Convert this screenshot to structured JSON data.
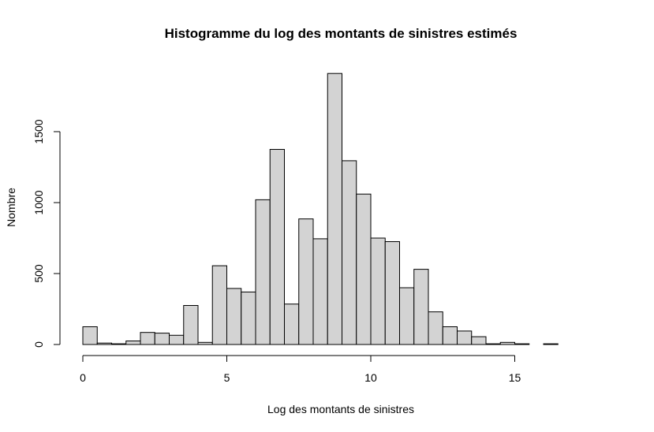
{
  "chart_data": {
    "type": "bar",
    "title": "Histogramme du log des montants de sinistres estimés",
    "xlabel": "Log des montants de sinistres",
    "ylabel": "Nombre",
    "bin_width": 0.5,
    "bin_start": 0,
    "values": [
      125,
      10,
      5,
      25,
      85,
      80,
      65,
      275,
      15,
      555,
      395,
      370,
      1020,
      1375,
      285,
      885,
      745,
      1910,
      1295,
      1060,
      750,
      725,
      400,
      530,
      230,
      125,
      95,
      55,
      5,
      15,
      5,
      0,
      5,
      0,
      0,
      0
    ],
    "xlim": [
      0,
      18
    ],
    "ylim": [
      0,
      1910
    ],
    "x_ticks": [
      0,
      5,
      10,
      15
    ],
    "y_ticks": [
      0,
      500,
      1000,
      1500
    ],
    "bar_color": "#d3d3d3",
    "grid": false,
    "legend": "none"
  }
}
